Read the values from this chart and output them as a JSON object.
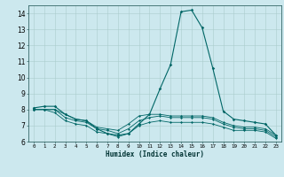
{
  "xlabel": "Humidex (Indice chaleur)",
  "background_color": "#cce8ee",
  "line_color": "#006666",
  "grid_color": "#aacccc",
  "x_values": [
    0,
    1,
    2,
    3,
    4,
    5,
    6,
    7,
    8,
    9,
    10,
    11,
    12,
    13,
    14,
    15,
    16,
    17,
    18,
    19,
    20,
    21,
    22,
    23
  ],
  "line1": [
    8.1,
    8.2,
    8.2,
    7.7,
    7.4,
    7.3,
    6.8,
    6.5,
    6.4,
    6.5,
    7.1,
    7.7,
    9.3,
    10.8,
    14.1,
    14.2,
    13.1,
    10.6,
    7.9,
    7.4,
    7.3,
    7.2,
    7.1,
    6.4
  ],
  "line2": [
    8.0,
    8.0,
    8.0,
    7.7,
    7.4,
    7.3,
    6.9,
    6.8,
    6.7,
    7.1,
    7.6,
    7.7,
    7.7,
    7.6,
    7.6,
    7.6,
    7.6,
    7.5,
    7.2,
    7.0,
    6.9,
    6.9,
    6.8,
    6.4
  ],
  "line3": [
    8.0,
    8.0,
    8.0,
    7.5,
    7.3,
    7.2,
    6.8,
    6.7,
    6.5,
    6.8,
    7.3,
    7.5,
    7.6,
    7.5,
    7.5,
    7.5,
    7.5,
    7.4,
    7.1,
    6.9,
    6.8,
    6.8,
    6.7,
    6.3
  ],
  "line4": [
    8.0,
    8.0,
    7.8,
    7.3,
    7.1,
    7.0,
    6.6,
    6.5,
    6.3,
    6.5,
    7.0,
    7.2,
    7.3,
    7.2,
    7.2,
    7.2,
    7.2,
    7.1,
    6.9,
    6.7,
    6.7,
    6.7,
    6.6,
    6.2
  ],
  "ylim": [
    6,
    14.5
  ],
  "xlim": [
    -0.5,
    23.5
  ],
  "yticks": [
    6,
    7,
    8,
    9,
    10,
    11,
    12,
    13,
    14
  ]
}
